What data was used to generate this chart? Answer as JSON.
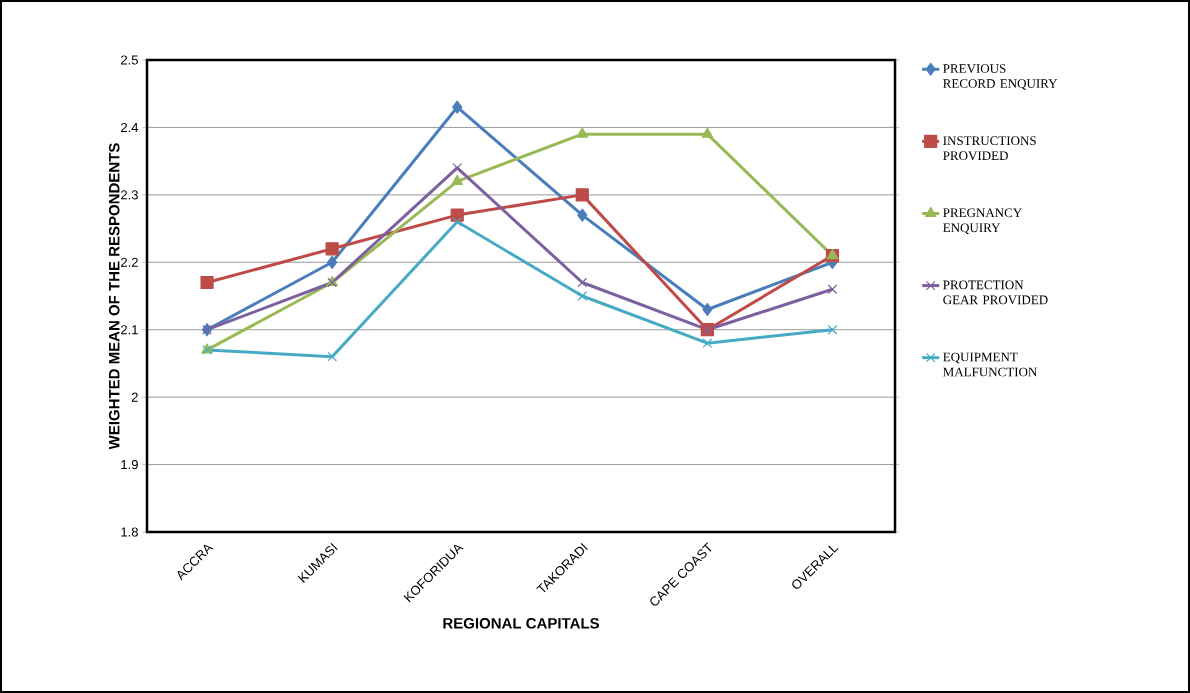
{
  "chart_data": {
    "type": "line",
    "xlabel": "REGIONAL CAPITALS",
    "ylabel": "WEIGHTED MEAN OF THE RESPONDENTS",
    "categories": [
      "ACCRA",
      "KUMASI",
      "KOFORIDUA",
      "TAKORADI",
      "CAPE COAST",
      "OVERALL"
    ],
    "series": [
      {
        "name": "PREVIOUS RECORD ENQUIRY",
        "color": "#4a7ebb",
        "marker": "diamond",
        "values": [
          2.1,
          2.2,
          2.43,
          2.27,
          2.13,
          2.2
        ]
      },
      {
        "name": "INSTRUCTIONS PROVIDED",
        "color": "#be4b48",
        "marker": "square",
        "values": [
          2.17,
          2.22,
          2.27,
          2.3,
          2.1,
          2.21
        ]
      },
      {
        "name": "PREGNANCY ENQUIRY",
        "color": "#98b954",
        "marker": "triangle",
        "values": [
          2.07,
          2.17,
          2.32,
          2.39,
          2.39,
          2.21
        ]
      },
      {
        "name": "PROTECTION GEAR PROVIDED",
        "color": "#7d60a0",
        "marker": "cross",
        "values": [
          2.1,
          2.17,
          2.34,
          2.17,
          2.1,
          2.16
        ]
      },
      {
        "name": "EQUIPMENT MALFUNCTION",
        "color": "#46aac5",
        "marker": "cross",
        "values": [
          2.07,
          2.06,
          2.26,
          2.15,
          2.08,
          2.1
        ]
      }
    ],
    "ylim": [
      1.8,
      2.5
    ],
    "yticks": [
      1.8,
      1.9,
      2,
      2.1,
      2.2,
      2.3,
      2.4,
      2.5
    ],
    "grid": "y",
    "legend": "right",
    "line_style": "solid"
  }
}
